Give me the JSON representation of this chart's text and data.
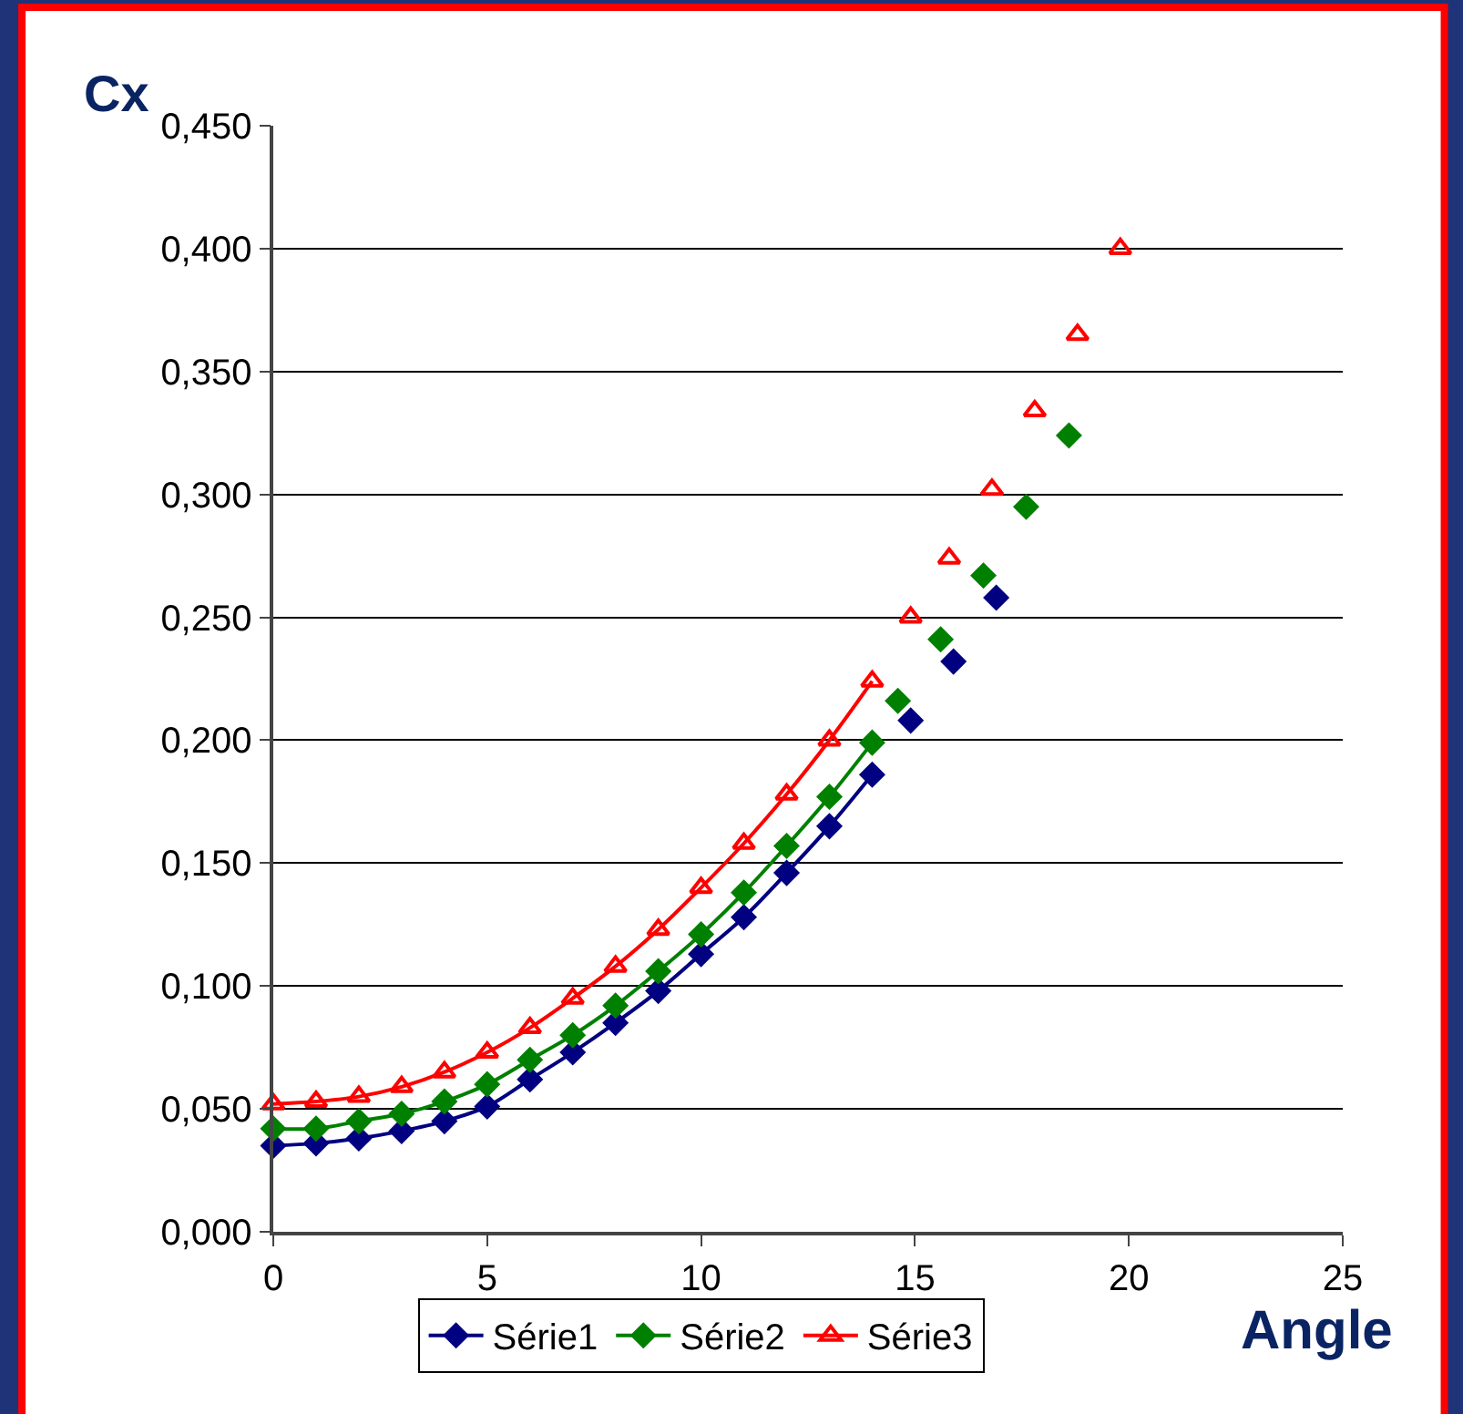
{
  "chart_data": {
    "type": "line",
    "xlabel": "Angle",
    "ylabel": "Cx",
    "xlim": [
      0,
      25
    ],
    "xticks": [
      0,
      5,
      10,
      15,
      20,
      25
    ],
    "ylim": [
      0,
      0.45
    ],
    "yticks": [
      {
        "value": 0,
        "label": "0,000"
      },
      {
        "value": 0.05,
        "label": "0,050"
      },
      {
        "value": 0.1,
        "label": "0,100"
      },
      {
        "value": 0.15,
        "label": "0,150"
      },
      {
        "value": 0.2,
        "label": "0,200"
      },
      {
        "value": 0.25,
        "label": "0,250"
      },
      {
        "value": 0.3,
        "label": "0,300"
      },
      {
        "value": 0.35,
        "label": "0,350"
      },
      {
        "value": 0.4,
        "label": "0,400"
      },
      {
        "value": 0.45,
        "label": "0,450"
      }
    ],
    "grid": "y",
    "legend": "bottom",
    "series": [
      {
        "name": "Série1",
        "color": "#000080",
        "marker": "diamond",
        "x": [
          0,
          1,
          2,
          3,
          4,
          5,
          6,
          7,
          8,
          9,
          10,
          11,
          12,
          13,
          14
        ],
        "values": [
          0.035,
          0.036,
          0.038,
          0.041,
          0.045,
          0.051,
          0.062,
          0.073,
          0.085,
          0.098,
          0.113,
          0.128,
          0.146,
          0.165,
          0.186
        ]
      },
      {
        "name": "Série2",
        "color": "#008000",
        "marker": "diamond",
        "x": [
          0,
          1,
          2,
          3,
          4,
          5,
          6,
          7,
          8,
          9,
          10,
          11,
          12,
          13,
          14
        ],
        "values": [
          0.042,
          0.042,
          0.045,
          0.048,
          0.053,
          0.06,
          0.07,
          0.08,
          0.092,
          0.106,
          0.121,
          0.138,
          0.157,
          0.177,
          0.199
        ]
      },
      {
        "name": "Série3",
        "color": "#ff0000",
        "marker": "triangle",
        "x": [
          0,
          1,
          2,
          3,
          4,
          5,
          6,
          7,
          8,
          9,
          10,
          11,
          12,
          13,
          14
        ],
        "values": [
          0.052,
          0.053,
          0.055,
          0.059,
          0.065,
          0.073,
          0.083,
          0.095,
          0.108,
          0.123,
          0.14,
          0.158,
          0.178,
          0.2,
          0.224
        ]
      },
      {
        "color": "#000080",
        "type": "scatter",
        "marker": "diamond",
        "x": [
          14.9,
          15.9,
          16.9
        ],
        "values": [
          0.208,
          0.232,
          0.258
        ]
      },
      {
        "color": "#008000",
        "type": "scatter",
        "marker": "diamond",
        "x": [
          14.6,
          15.6,
          16.6,
          17.6,
          18.6
        ],
        "values": [
          0.216,
          0.241,
          0.267,
          0.295,
          0.324
        ]
      },
      {
        "color": "#ff0000",
        "type": "scatter",
        "marker": "triangle",
        "x": [
          14.9,
          15.8,
          16.8,
          17.8,
          18.8,
          19.8
        ],
        "values": [
          0.25,
          0.274,
          0.302,
          0.334,
          0.365,
          0.4
        ]
      }
    ]
  }
}
